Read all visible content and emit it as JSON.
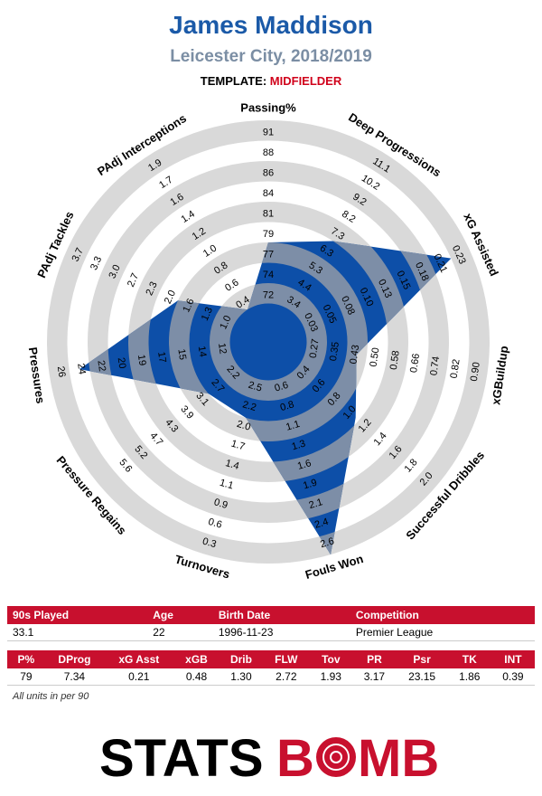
{
  "header": {
    "title": "James Maddison",
    "subtitle": "Leicester City, 2018/2019",
    "template_label": "TEMPLATE:",
    "template_value": "MIDFIELDER"
  },
  "chart_data": {
    "type": "radar",
    "rings": 5,
    "colors": {
      "fill": "#0d4fa8",
      "overlap": "#7d8ea7",
      "ring_light": "#d9d9d9",
      "ring_white": "#ffffff"
    },
    "axes": [
      {
        "label": "Passing%",
        "ticks": [
          "72",
          "74",
          "77",
          "79",
          "81",
          "84",
          "86",
          "88",
          "91"
        ],
        "value": 79,
        "frac": 0.4
      },
      {
        "label": "Deep Progressions",
        "ticks": [
          "3.4",
          "4.4",
          "5.3",
          "6.3",
          "7.3",
          "8.2",
          "9.2",
          "10.2",
          "11.1"
        ],
        "value": 7.34,
        "frac": 0.5
      },
      {
        "label": "xG Assisted",
        "ticks": [
          "0.03",
          "0.05",
          "0.08",
          "0.10",
          "0.13",
          "0.15",
          "0.18",
          "0.21",
          "0.23"
        ],
        "value": 0.21,
        "frac": 0.9
      },
      {
        "label": "xGBuildup",
        "ticks": [
          "0.27",
          "0.35",
          "0.43",
          "0.50",
          "0.58",
          "0.66",
          "0.74",
          "0.82",
          "0.90"
        ],
        "value": 0.48,
        "frac": 0.35
      },
      {
        "label": "Successful Dribbles",
        "ticks": [
          "0.4",
          "0.6",
          "0.8",
          "1.0",
          "1.2",
          "1.4",
          "1.6",
          "1.8",
          "2.0"
        ],
        "value": 1.3,
        "frac": 0.48
      },
      {
        "label": "Fouls Won",
        "ticks": [
          "0.6",
          "0.8",
          "1.1",
          "1.3",
          "1.6",
          "1.9",
          "2.1",
          "2.4",
          "2.6"
        ],
        "value": 2.72,
        "frac": 1.0
      },
      {
        "label": "Turnovers",
        "ticks": [
          "2.5",
          "2.2",
          "2.0",
          "1.7",
          "1.4",
          "1.1",
          "0.9",
          "0.6",
          "0.3"
        ],
        "value": 1.93,
        "frac": 0.3
      },
      {
        "label": "Pressure Regains",
        "ticks": [
          "2.2",
          "2.7",
          "3.1",
          "3.9",
          "4.3",
          "4.7",
          "5.2",
          "5.6",
          ""
        ],
        "value": 3.17,
        "frac": 0.3
      },
      {
        "label": "Pressures",
        "ticks": [
          "12",
          "14",
          "15",
          "17",
          "19",
          "20",
          "22",
          "24",
          "26"
        ],
        "value": 23.15,
        "frac": 0.85
      },
      {
        "label": "PAdj Tackles",
        "ticks": [
          "1.0",
          "1.3",
          "1.6",
          "2.0",
          "2.3",
          "2.7",
          "3.0",
          "3.3",
          "3.7"
        ],
        "value": 1.86,
        "frac": 0.4
      },
      {
        "label": "PAdj Interceptions",
        "ticks": [
          "0.4",
          "0.6",
          "0.8",
          "1.0",
          "1.2",
          "1.4",
          "1.6",
          "1.7",
          "1.9"
        ],
        "value": 0.39,
        "frac": 0.1
      }
    ]
  },
  "info_table": {
    "headers": [
      "90s Played",
      "Age",
      "Birth Date",
      "Competition"
    ],
    "values": [
      "33.1",
      "22",
      "1996-11-23",
      "Premier League"
    ]
  },
  "stats_table": {
    "headers": [
      "P%",
      "DProg",
      "xG Asst",
      "xGB",
      "Drib",
      "FLW",
      "Tov",
      "PR",
      "Psr",
      "TK",
      "INT"
    ],
    "values": [
      "79",
      "7.34",
      "0.21",
      "0.48",
      "1.30",
      "2.72",
      "1.93",
      "3.17",
      "23.15",
      "1.86",
      "0.39"
    ]
  },
  "footnote": "All units in per 90",
  "logo": {
    "text_left": "STATS",
    "text_right": "B",
    "text_end": "MB"
  }
}
